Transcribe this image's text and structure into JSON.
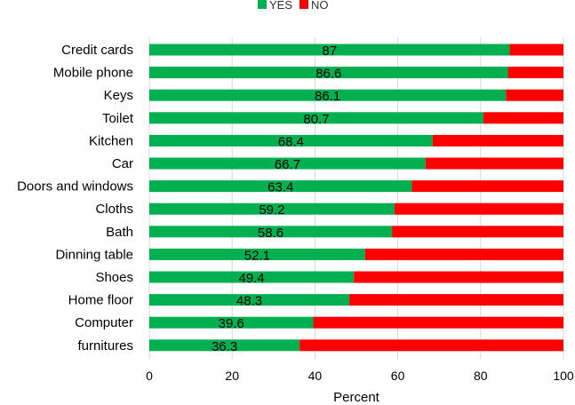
{
  "chart_data": {
    "type": "bar",
    "orientation": "horizontal",
    "stacked": true,
    "categories": [
      "Credit cards",
      "Mobile phone",
      "Keys",
      "Toilet",
      "Kitchen",
      "Car",
      "Doors and windows",
      "Cloths",
      "Bath",
      "Dinning table",
      "Shoes",
      "Home floor",
      "Computer",
      "furnitures"
    ],
    "series": [
      {
        "name": "YES",
        "color": "#00b050",
        "values": [
          87,
          86.6,
          86.1,
          80.7,
          68.4,
          66.7,
          63.4,
          59.2,
          58.6,
          52.1,
          49.4,
          48.3,
          39.6,
          36.3
        ]
      },
      {
        "name": "NO",
        "color": "#ff0000",
        "values": [
          13,
          13.4,
          13.9,
          19.3,
          31.6,
          33.3,
          36.6,
          40.8,
          41.4,
          47.9,
          50.6,
          51.7,
          60.4,
          63.7
        ]
      }
    ],
    "data_labels": [
      "87",
      "86.6",
      "86.1",
      "80.7",
      "68.4",
      "66.7",
      "63.4",
      "59.2",
      "58.6",
      "52.1",
      "49.4",
      "48.3",
      "39.6",
      "36.3"
    ],
    "xlabel": "Percent",
    "ylabel": "",
    "xlim": [
      0,
      100
    ],
    "xticks": [
      "0",
      "20",
      "40",
      "60",
      "80",
      "100"
    ],
    "grid": true,
    "legend": "top-center"
  }
}
